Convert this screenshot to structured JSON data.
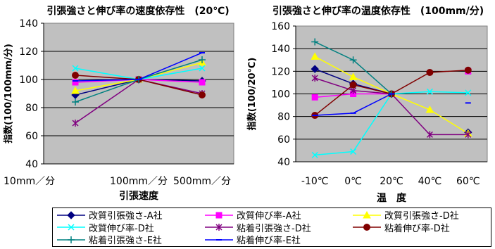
{
  "chart_data": [
    {
      "type": "line",
      "title": "引張強さと伸び率の速度依存性　(20℃)",
      "xlabel": "引張速度",
      "ylabel": "指数(100/100mm/分)",
      "categories": [
        "10mm／分",
        "100mm／分",
        "500mm／分"
      ],
      "ylim": [
        40,
        140
      ],
      "yticks": [
        40,
        60,
        80,
        100,
        120,
        140
      ],
      "grid": true,
      "series": [
        {
          "name": "改質引張強さ-A社",
          "values": [
            89,
            100,
            99
          ]
        },
        {
          "name": "改質伸び率-A社",
          "values": [
            98,
            100,
            98
          ]
        },
        {
          "name": "改質引張強さ-D社",
          "values": [
            92,
            100,
            112
          ]
        },
        {
          "name": "改質伸び率-D社",
          "values": [
            108,
            100,
            108
          ]
        },
        {
          "name": "粘着引張強さ-D社",
          "values": [
            69,
            100,
            90
          ]
        },
        {
          "name": "粘着伸び率-D社",
          "values": [
            103,
            100,
            89
          ]
        },
        {
          "name": "粘着引張強さ-E社",
          "values": [
            84,
            100,
            114
          ]
        },
        {
          "name": "粘着伸び率-E社",
          "values": [
            99,
            100,
            119
          ]
        }
      ]
    },
    {
      "type": "line",
      "title": "引張強さと伸び率の温度依存性　(100mm/分)",
      "xlabel": "温　度",
      "ylabel": "指数(100/20℃)",
      "categories": [
        "-10℃",
        "0℃",
        "20℃",
        "40℃",
        "60℃"
      ],
      "ylim": [
        40,
        160
      ],
      "yticks": [
        40,
        60,
        80,
        100,
        120,
        140,
        160
      ],
      "grid": true,
      "series": [
        {
          "name": "改質引張強さ-A社",
          "values": [
            122,
            109,
            100,
            null,
            66
          ]
        },
        {
          "name": "改質伸び率-A社",
          "values": [
            97,
            100,
            100,
            null,
            120
          ]
        },
        {
          "name": "改質引張強さ-D社",
          "values": [
            133,
            115,
            100,
            86,
            65
          ]
        },
        {
          "name": "改質伸び率-D社",
          "values": [
            46,
            49,
            100,
            102,
            101
          ]
        },
        {
          "name": "粘着引張強さ-D社",
          "values": [
            114,
            103,
            100,
            64,
            64
          ]
        },
        {
          "name": "粘着伸び率-D社",
          "values": [
            81,
            108,
            100,
            119,
            121
          ]
        },
        {
          "name": "粘着引張強さ-E社",
          "values": [
            146,
            130,
            100,
            null,
            null
          ]
        },
        {
          "name": "粘着伸び率-E社",
          "values": [
            81,
            83,
            100,
            null,
            92
          ]
        }
      ]
    }
  ],
  "legend": [
    {
      "label": "改質引張強さ-A社",
      "color": "#000080",
      "marker": "diamond"
    },
    {
      "label": "改質伸び率-A社",
      "color": "#ff00ff",
      "marker": "square"
    },
    {
      "label": "改質引張強さ-D社",
      "color": "#ffff00",
      "marker": "triangle"
    },
    {
      "label": "改質伸び率-D社",
      "color": "#00ffff",
      "marker": "x"
    },
    {
      "label": "粘着引張強さ-D社",
      "color": "#800080",
      "marker": "star"
    },
    {
      "label": "粘着伸び率-D社",
      "color": "#800000",
      "marker": "circle"
    },
    {
      "label": "粘着引張強さ-E社",
      "color": "#008080",
      "marker": "plus"
    },
    {
      "label": "粘着伸び率-E社",
      "color": "#0000ff",
      "marker": "dash"
    }
  ]
}
